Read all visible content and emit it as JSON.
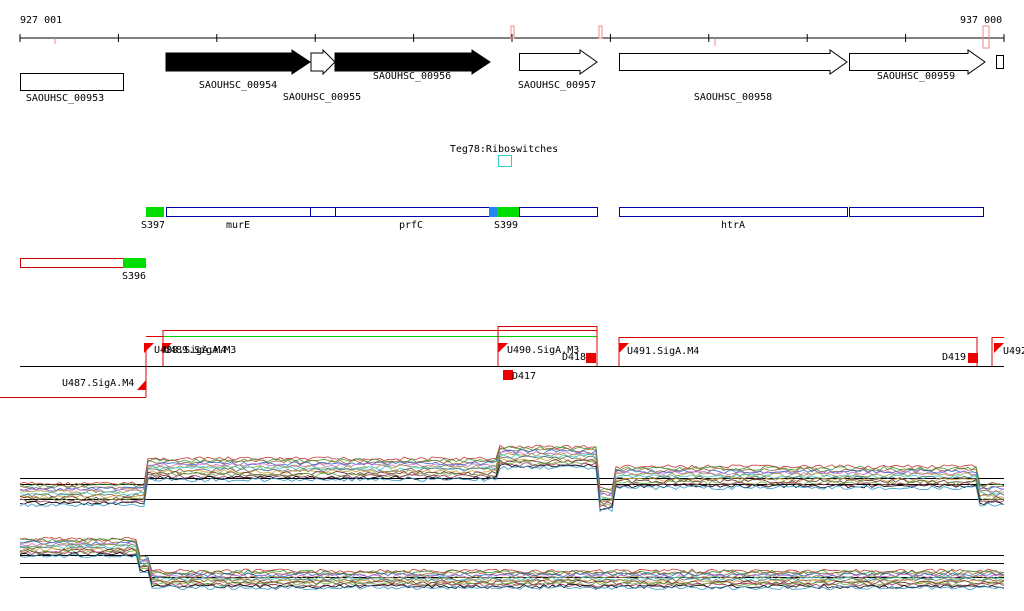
{
  "ruler": {
    "start_label": "927 001",
    "end_label": "937 000"
  },
  "genes": [
    {
      "label": "SAOUHSC_00953"
    },
    {
      "label": "SAOUHSC_00954"
    },
    {
      "label": "SAOUHSC_00955"
    },
    {
      "label": "SAOUHSC_00956"
    },
    {
      "label": "SAOUHSC_00957"
    },
    {
      "label": "SAOUHSC_00958"
    },
    {
      "label": "SAOUHSC_00959"
    }
  ],
  "rna": {
    "label": "Teg78:Riboswitches"
  },
  "annotations": [
    {
      "label": "S397"
    },
    {
      "label": "murE"
    },
    {
      "label": "prfC"
    },
    {
      "label": "S399"
    },
    {
      "label": "htrA"
    },
    {
      "label": "S396"
    }
  ],
  "promoters": [
    {
      "label": "U488.SigA.M4"
    },
    {
      "label": "U489.SigA.M3"
    },
    {
      "label": "U490.SigA.M3"
    },
    {
      "label": "D418"
    },
    {
      "label": "U491.SigA.M4"
    },
    {
      "label": "D419"
    },
    {
      "label": "U492"
    },
    {
      "label": "D417"
    },
    {
      "label": "U487.SigA.M4"
    }
  ]
}
